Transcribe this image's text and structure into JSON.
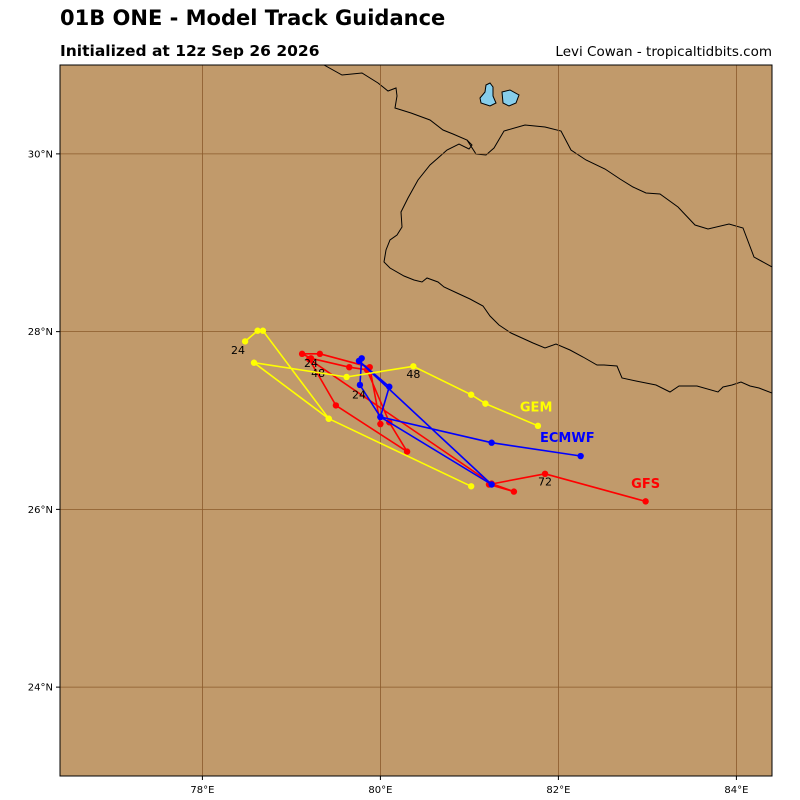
{
  "header": {
    "title": "01B ONE - Model Track Guidance",
    "subtitle": "Initialized at 12z Sep 26 2026",
    "credit": "Levi Cowan - tropicaltidbits.com"
  },
  "colors": {
    "land": "#c19a6b",
    "water": "#87ceeb",
    "gem": "#ffff00",
    "ecmwf": "#0000ff",
    "gfs": "#ff0000"
  },
  "map": {
    "lon_range": [
      76.4,
      84.4
    ],
    "lat_range": [
      23.0,
      31.0
    ],
    "lat_ticks": [
      "30°N",
      "28°N",
      "26°N",
      "24°N"
    ],
    "lon_ticks": [
      "78°E",
      "80°E",
      "82°E",
      "84°E"
    ],
    "grid": true
  },
  "chart_data": {
    "type": "map-tracks",
    "series": [
      {
        "name": "GFS",
        "color": "#ff0000",
        "points": [
          [
            80.0,
            26.96
          ],
          [
            79.88,
            27.6
          ],
          [
            79.32,
            27.75
          ],
          [
            79.12,
            27.75
          ],
          [
            79.22,
            27.7
          ],
          [
            79.65,
            27.6
          ],
          [
            79.85,
            27.57
          ],
          [
            80.1,
            26.98
          ],
          [
            80.3,
            26.65
          ],
          [
            79.5,
            27.17
          ],
          [
            79.2,
            27.69
          ],
          [
            81.25,
            26.29
          ],
          [
            81.5,
            26.2
          ],
          [
            81.22,
            26.28
          ],
          [
            81.85,
            26.4
          ],
          [
            82.98,
            26.09
          ]
        ],
        "hour_labels": [
          {
            "text": "24",
            "lon": 79.22,
            "lat": 27.6
          },
          {
            "text": "48",
            "lon": 79.3,
            "lat": 27.49
          },
          {
            "text": "72",
            "lon": 81.85,
            "lat": 26.27
          }
        ]
      },
      {
        "name": "ECMWF",
        "color": "#0000ff",
        "points": [
          [
            79.76,
            27.67
          ],
          [
            79.79,
            27.7
          ],
          [
            79.77,
            27.4
          ],
          [
            80.0,
            27.04
          ],
          [
            80.1,
            27.38
          ],
          [
            79.76,
            27.67
          ],
          [
            81.25,
            26.28
          ],
          [
            80.0,
            27.04
          ],
          [
            81.25,
            26.75
          ],
          [
            82.25,
            26.6
          ]
        ],
        "hour_labels": [
          {
            "text": "24",
            "lon": 79.76,
            "lat": 27.25
          }
        ]
      },
      {
        "name": "GEM",
        "color": "#ffff00",
        "points": [
          [
            78.48,
            27.89
          ],
          [
            78.62,
            28.01
          ],
          [
            78.68,
            28.01
          ],
          [
            79.42,
            27.02
          ],
          [
            81.02,
            26.26
          ],
          [
            79.42,
            27.02
          ],
          [
            78.58,
            27.65
          ],
          [
            79.62,
            27.49
          ],
          [
            80.37,
            27.61
          ],
          [
            81.02,
            27.29
          ],
          [
            81.18,
            27.19
          ],
          [
            81.77,
            26.94
          ]
        ],
        "hour_labels": [
          {
            "text": "24",
            "lon": 78.4,
            "lat": 27.75
          },
          {
            "text": "48",
            "lon": 80.37,
            "lat": 27.48
          }
        ]
      }
    ],
    "model_labels": [
      {
        "text": "GEM",
        "lon": 81.75,
        "lat": 27.1,
        "color": "#ffff00"
      },
      {
        "text": "ECMWF",
        "lon": 82.1,
        "lat": 26.76,
        "color": "#0000ff"
      },
      {
        "text": "GFS",
        "lon": 82.98,
        "lat": 26.24,
        "color": "#ff0000"
      }
    ]
  }
}
